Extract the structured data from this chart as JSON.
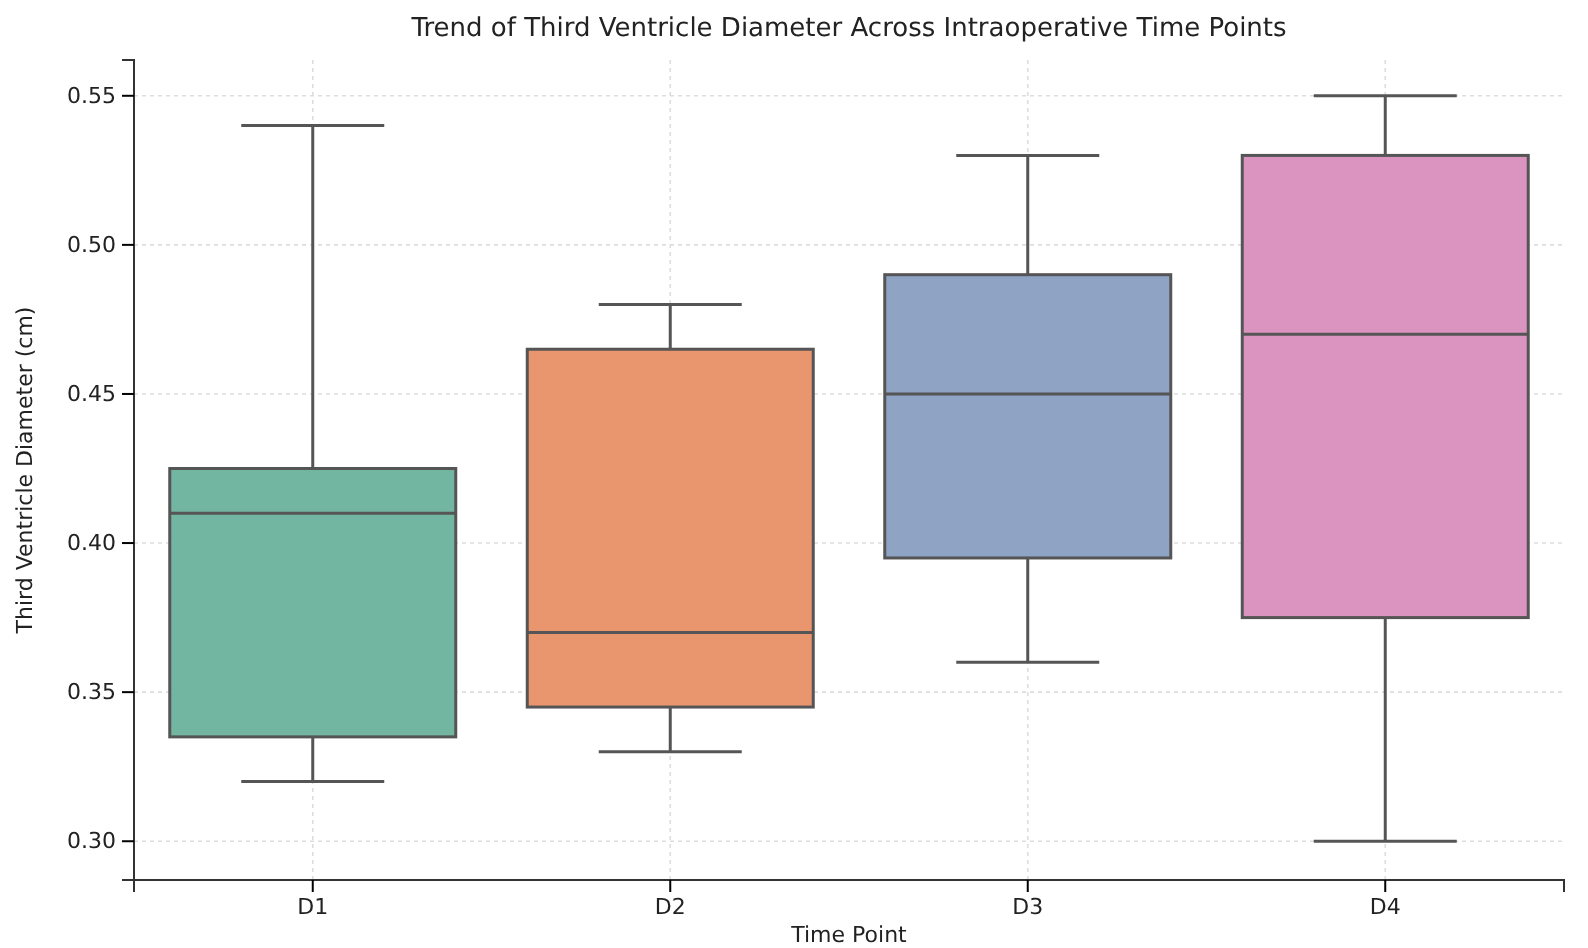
{
  "chart_data": {
    "type": "box",
    "title": "Trend of Third Ventricle Diameter Across Intraoperative Time Points",
    "xlabel": "Time Point",
    "ylabel": "Third Ventricle Diameter (cm)",
    "categories": [
      "D1",
      "D2",
      "D3",
      "D4"
    ],
    "colors": [
      "#72b6a1",
      "#e9966f",
      "#8fa3c5",
      "#db93bf"
    ],
    "boxes": [
      {
        "low": 0.32,
        "q1": 0.335,
        "median": 0.41,
        "q3": 0.425,
        "high": 0.54
      },
      {
        "low": 0.33,
        "q1": 0.345,
        "median": 0.37,
        "q3": 0.465,
        "high": 0.48
      },
      {
        "low": 0.36,
        "q1": 0.395,
        "median": 0.45,
        "q3": 0.49,
        "high": 0.53
      },
      {
        "low": 0.3,
        "q1": 0.375,
        "median": 0.47,
        "q3": 0.53,
        "high": 0.55
      }
    ],
    "ylim": [
      0.287,
      0.562
    ],
    "yticks": [
      {
        "value": 0.3,
        "label": "0.30"
      },
      {
        "value": 0.35,
        "label": "0.35"
      },
      {
        "value": 0.4,
        "label": "0.40"
      },
      {
        "value": 0.45,
        "label": "0.45"
      },
      {
        "value": 0.5,
        "label": "0.50"
      },
      {
        "value": 0.55,
        "label": "0.55"
      }
    ],
    "grid": true
  }
}
